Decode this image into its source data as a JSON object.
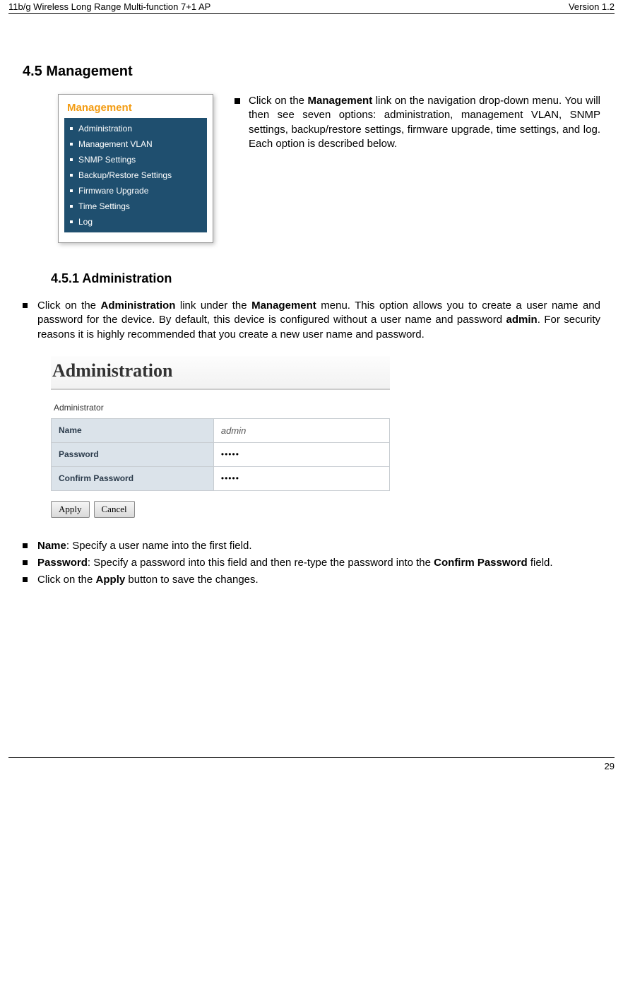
{
  "header": {
    "left": "11b/g Wireless Long Range Multi-function 7+1 AP",
    "right": "Version 1.2"
  },
  "section": {
    "number_title": "4.5  Management"
  },
  "mgmt_menu": {
    "title": "Management",
    "items": [
      "Administration",
      "Management VLAN",
      "SNMP Settings",
      "Backup/Restore Settings",
      "Firmware Upgrade",
      "Time Settings",
      "Log"
    ]
  },
  "mgmt_desc": {
    "prefix": "Click on the ",
    "bold1": "Management",
    "rest": " link on the navigation drop-down menu. You will then see seven options: administration, management VLAN, SNMP settings, backup/restore settings, firmware upgrade, time settings, and log. Each option is described below."
  },
  "subsection": {
    "number_title": "4.5.1  Administration"
  },
  "admin_intro": {
    "prefix": "Click on the ",
    "bold1": "Administration",
    "mid1": " link under the ",
    "bold2": "Management",
    "mid2": " menu. This option allows you to create a user name and password for the device. By default, this device is configured without a user name and password ",
    "bold3": "admin",
    "rest": ". For security reasons it is highly recommended that you create a new user name and password."
  },
  "admin_form": {
    "title": "Administration",
    "group": "Administrator",
    "rows": {
      "name_label": "Name",
      "name_value": "admin",
      "pw_label": "Password",
      "pw_value": "•••••",
      "cpw_label": "Confirm Password",
      "cpw_value": "•••••"
    },
    "buttons": {
      "apply": "Apply",
      "cancel": "Cancel"
    }
  },
  "notes": {
    "n1_bold": "Name",
    "n1_rest": ": Specify a user name into the first field.",
    "n2_bold": "Password",
    "n2_mid": ": Specify a password into this field and then re-type the password into the ",
    "n2_bold2": "Confirm Password",
    "n2_rest": " field.",
    "n3_pre": "Click on the ",
    "n3_bold": "Apply",
    "n3_rest": " button to save the changes."
  },
  "footer": {
    "page": "29"
  }
}
